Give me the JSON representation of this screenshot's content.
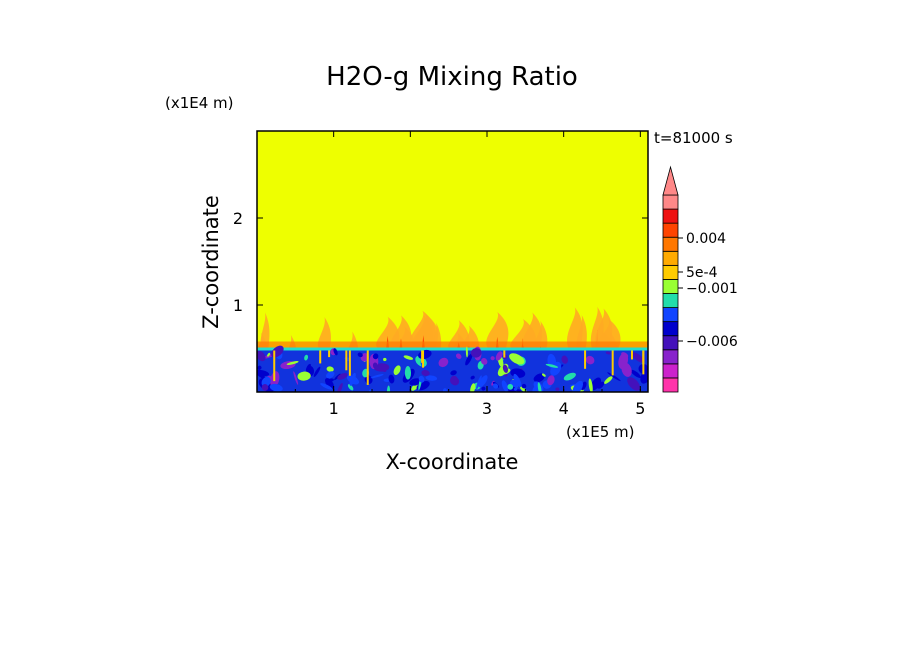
{
  "chart_data": {
    "type": "heatmap",
    "title": "H2O-g Mixing Ratio",
    "xlabel": "X-coordinate",
    "ylabel": "Z-coordinate",
    "x_scale_label": "(x1E5 m)",
    "y_scale_label": "(x1E4 m)",
    "time_label": "t=81000 s",
    "xlim": [
      0,
      5.1
    ],
    "ylim": [
      0,
      3
    ],
    "x_ticks": [
      "1",
      "2",
      "3",
      "4",
      "5"
    ],
    "x_tick_values": [
      1,
      2,
      3,
      4,
      5
    ],
    "y_ticks": [
      "1",
      "2"
    ],
    "y_tick_values": [
      1,
      2
    ],
    "colorbar": {
      "tick_labels": [
        "0.004",
        "5e-4",
        "−0.001",
        "−0.006"
      ],
      "tick_values": [
        0.004,
        0.0005,
        -0.001,
        -0.006
      ],
      "colors": [
        "#ff33aa",
        "#cc22cc",
        "#8822cc",
        "#4411bb",
        "#0000cc",
        "#1144ff",
        "#22ddaa",
        "#99ff33",
        "#ffcc00",
        "#ffaa00",
        "#ff7700",
        "#ff4400",
        "#ee1111",
        "#ff8888"
      ],
      "extend": "max"
    },
    "regions": {
      "background_color": "#eeff00",
      "plume_color": "#ffaa22",
      "boundary_layer_top": 0.5,
      "boundary_layer_color": "#1133dd"
    }
  }
}
